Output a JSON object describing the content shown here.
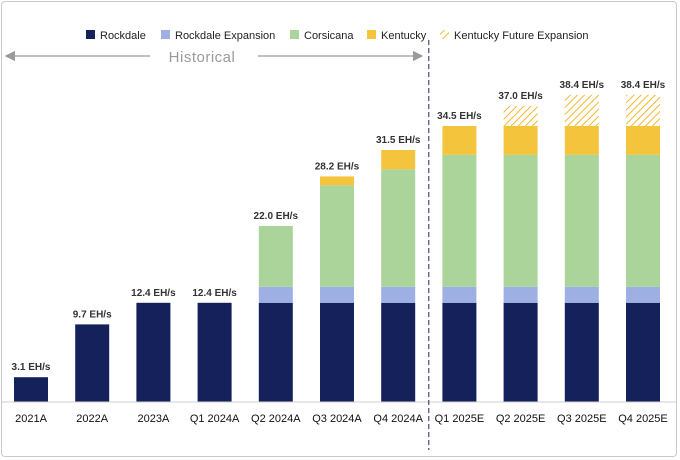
{
  "chart_data": {
    "type": "bar",
    "stacked": true,
    "units": "EH/s",
    "categories": [
      "2021A",
      "2022A",
      "2023A",
      "Q1 2024A",
      "Q2 2024A",
      "Q3 2024A",
      "Q4 2024A",
      "Q1 2025E",
      "Q2 2025E",
      "Q3 2025E",
      "Q4 2025E"
    ],
    "series": [
      {
        "name": "Rockdale",
        "color": "#14215a",
        "pattern": "solid",
        "values": [
          3.1,
          9.7,
          12.4,
          12.4,
          12.4,
          12.4,
          12.4,
          12.4,
          12.4,
          12.4,
          12.4
        ]
      },
      {
        "name": "Rockdale Expansion",
        "color": "#9dafe3",
        "pattern": "solid",
        "values": [
          0,
          0,
          0,
          0,
          2.0,
          2.0,
          2.0,
          2.0,
          2.0,
          2.0,
          2.0
        ]
      },
      {
        "name": "Corsicana",
        "color": "#aad499",
        "pattern": "solid",
        "values": [
          0,
          0,
          0,
          0,
          7.6,
          12.7,
          14.7,
          16.5,
          16.5,
          16.5,
          16.5
        ]
      },
      {
        "name": "Kentucky",
        "color": "#f5c43d",
        "pattern": "solid",
        "values": [
          0,
          0,
          0,
          0,
          0,
          1.1,
          2.4,
          3.6,
          3.6,
          3.6,
          3.6
        ]
      },
      {
        "name": "Kentucky Future Expansion",
        "color": "#f5c43d",
        "pattern": "hatch",
        "values": [
          0,
          0,
          0,
          0,
          0,
          0,
          0,
          0,
          2.5,
          3.9,
          3.9
        ]
      }
    ],
    "totals": [
      "3.1 EH/s",
      "9.7 EH/s",
      "12.4 EH/s",
      "12.4 EH/s",
      "22.0 EH/s",
      "28.2 EH/s",
      "31.5 EH/s",
      "34.5 EH/s",
      "37.0 EH/s",
      "38.4 EH/s",
      "38.4 EH/s"
    ],
    "ylim": [
      0,
      40
    ],
    "annotation": "Historical",
    "divider_after_index": 6
  }
}
